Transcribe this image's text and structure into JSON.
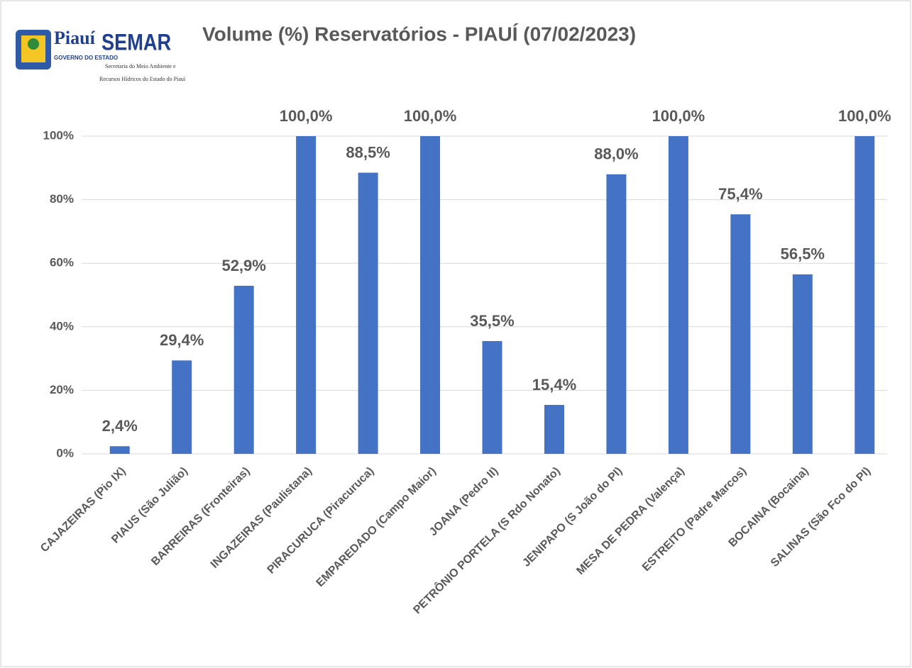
{
  "logo": {
    "name": "Piauí",
    "agency": "SEMAR",
    "government": "GOVERNO DO ESTADO",
    "lines": [
      "Secretaria do Meio Ambiente e",
      "Recursos Hídricos do Estado do Piauí"
    ]
  },
  "chart_data": {
    "type": "bar",
    "title": "Volume (%) Reservatórios  - PIAUÍ (07/02/2023)",
    "categories": [
      "CAJAZEIRAS (Pio IX)",
      "PIAUS (São Julião)",
      "BARREIRAS (Fronteiras)",
      "INGAZEIRAS (Paulistana)",
      "PIRACURUCA (Piracuruca)",
      "EMPAREDADO (Campo Maior)",
      "JOANA (Pedro II)",
      "PETRÔNIO PORTELA (S Rdo Nonato)",
      "JENIPAPO (S João do PI)",
      "MESA DE PEDRA (Valença)",
      "ESTREITO (Padre Marcos)",
      "BOCAINA (Bocaina)",
      "SALINAS (São Fco do PI)"
    ],
    "values": [
      2.4,
      29.4,
      52.9,
      100,
      88.5,
      100,
      35.5,
      15.4,
      88.0,
      100,
      75.4,
      56.5,
      100
    ],
    "value_labels": [
      "2,4%",
      "29,4%",
      "52,9%",
      "100,0%",
      "88,5%",
      "100,0%",
      "35,5%",
      "15,4%",
      "88,0%",
      "100,0%",
      "75,4%",
      "56,5%",
      "100,0%"
    ],
    "color": "#4472c4",
    "ylim": [
      0,
      100
    ],
    "yticks": [
      {
        "value": 0,
        "label": "0%"
      },
      {
        "value": 20,
        "label": "20%"
      },
      {
        "value": 40,
        "label": "40%"
      },
      {
        "value": 60,
        "label": "60%"
      },
      {
        "value": 80,
        "label": "80%"
      },
      {
        "value": 100,
        "label": "100%"
      }
    ],
    "grid": true
  }
}
